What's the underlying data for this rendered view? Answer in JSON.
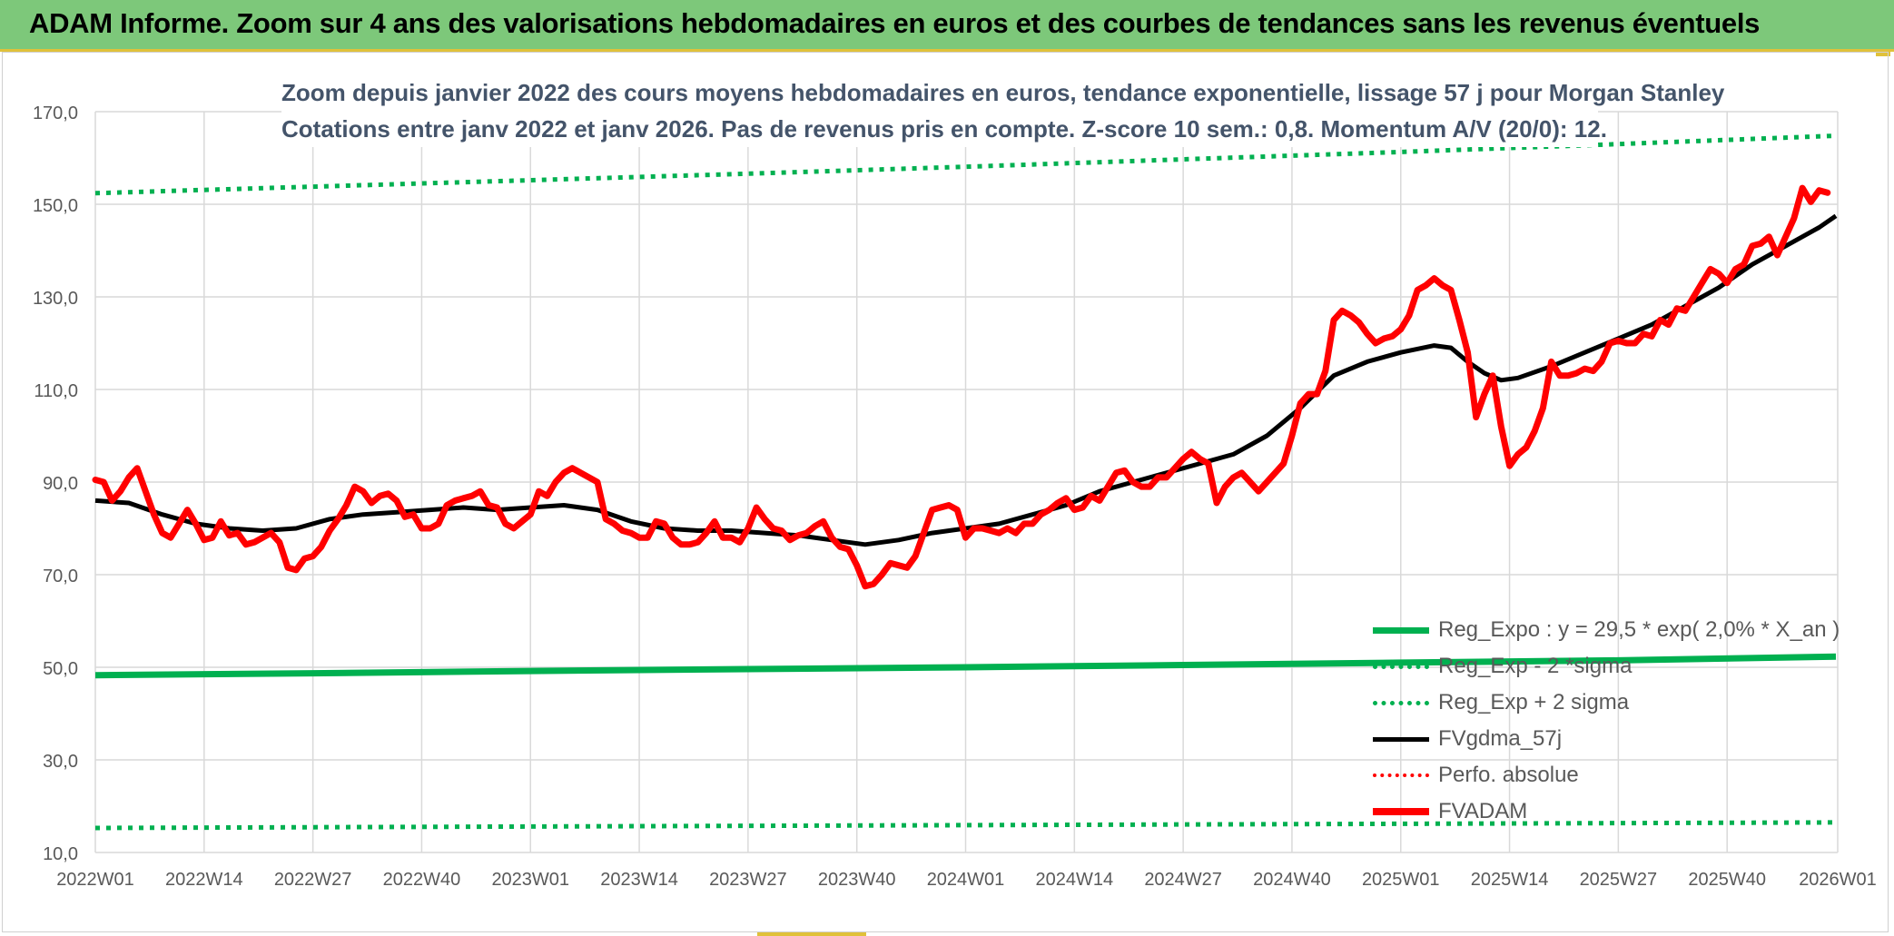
{
  "banner": {
    "title": "ADAM Informe. Zoom sur 4 ans des valorisations hebdomadaires en euros et des courbes de tendances sans les revenus éventuels"
  },
  "colors": {
    "banner_bg": "#7dc87a",
    "accent_gold": "#e0c13a",
    "reg_green": "#00b050",
    "price_red": "#ff0000",
    "ma_black": "#000000",
    "title_text": "#44546a",
    "axis_text": "#595959",
    "gridline": "#d9d9d9"
  },
  "chart_data": {
    "type": "line",
    "title_line1": "Zoom depuis janvier 2022 des cours moyens hebdomadaires en euros, tendance exponentielle, lissage 57 j pour Morgan Stanley",
    "title_line2": "Cotations entre janv 2022 et janv 2026. Pas de revenus pris en compte. Z-score 10 sem.: 0,8. Momentum A/V (20/0): 12.",
    "xlabel": "",
    "ylabel": "",
    "x_range": [
      "2022W01",
      "2026W01"
    ],
    "x_tick_labels": [
      "2022W01",
      "2022W14",
      "2022W27",
      "2022W40",
      "2023W01",
      "2023W14",
      "2023W27",
      "2023W40",
      "2024W01",
      "2024W14",
      "2024W27",
      "2024W40",
      "2025W01",
      "2025W14",
      "2025W27",
      "2025W40",
      "2026W01"
    ],
    "ylim": [
      10,
      170
    ],
    "y_tick_values": [
      10,
      30,
      50,
      70,
      90,
      110,
      130,
      150,
      170
    ],
    "y_tick_labels": [
      "10,0",
      "30,0",
      "50,0",
      "70,0",
      "90,0",
      "110,0",
      "130,0",
      "150,0",
      "170,0"
    ],
    "grid": true,
    "legend_position": "bottom-right",
    "legend": [
      {
        "label": "Reg_Expo : y = 29,5 * exp( 2,0% *  X_an )",
        "style": "solid-green"
      },
      {
        "label": "Reg_Exp - 2 *sigma",
        "style": "dot-green"
      },
      {
        "label": "Reg_Exp + 2 sigma",
        "style": "dot-green"
      },
      {
        "label": "FVgdma_57j",
        "style": "solid-black"
      },
      {
        "label": "Perfo. absolue",
        "style": "dot-red"
      },
      {
        "label": "FVADAM",
        "style": "solid-red"
      }
    ],
    "series": [
      {
        "name": "Reg_Expo : y = 29,5 * exp( 2,0% *  X_an )",
        "style": "solid-green",
        "points": [
          [
            0,
            48.3
          ],
          [
            26,
            48.7
          ],
          [
            52,
            49.2
          ],
          [
            78,
            49.6
          ],
          [
            104,
            50.0
          ],
          [
            130,
            50.5
          ],
          [
            156,
            51.0
          ],
          [
            182,
            51.5
          ],
          [
            208,
            52.3
          ]
        ]
      },
      {
        "name": "Reg_Exp - 2 *sigma",
        "style": "dot-green",
        "points": [
          [
            0,
            15.3
          ],
          [
            52,
            15.6
          ],
          [
            104,
            15.9
          ],
          [
            156,
            16.2
          ],
          [
            208,
            16.5
          ]
        ]
      },
      {
        "name": "Reg_Exp + 2 sigma",
        "style": "dot-green",
        "points": [
          [
            0,
            152.4
          ],
          [
            26,
            153.8
          ],
          [
            52,
            155.2
          ],
          [
            78,
            156.6
          ],
          [
            104,
            158.1
          ],
          [
            130,
            159.7
          ],
          [
            156,
            161.3
          ],
          [
            182,
            163.0
          ],
          [
            208,
            164.8
          ]
        ]
      },
      {
        "name": "FVgdma_57j",
        "style": "solid-black",
        "points": [
          [
            0,
            86
          ],
          [
            4,
            85.5
          ],
          [
            8,
            83
          ],
          [
            12,
            81
          ],
          [
            16,
            80
          ],
          [
            20,
            79.5
          ],
          [
            24,
            80
          ],
          [
            28,
            82
          ],
          [
            32,
            83
          ],
          [
            36,
            83.5
          ],
          [
            40,
            84
          ],
          [
            44,
            84.5
          ],
          [
            48,
            84
          ],
          [
            52,
            84.5
          ],
          [
            56,
            85
          ],
          [
            60,
            84
          ],
          [
            64,
            81.5
          ],
          [
            68,
            80
          ],
          [
            72,
            79.5
          ],
          [
            76,
            79.5
          ],
          [
            80,
            79
          ],
          [
            84,
            78.5
          ],
          [
            88,
            77.5
          ],
          [
            92,
            76.5
          ],
          [
            96,
            77.5
          ],
          [
            100,
            79
          ],
          [
            104,
            80
          ],
          [
            108,
            81
          ],
          [
            112,
            83
          ],
          [
            116,
            85
          ],
          [
            120,
            88
          ],
          [
            124,
            90
          ],
          [
            128,
            92
          ],
          [
            132,
            94
          ],
          [
            136,
            96
          ],
          [
            140,
            100
          ],
          [
            144,
            106
          ],
          [
            148,
            113
          ],
          [
            152,
            116
          ],
          [
            156,
            118
          ],
          [
            160,
            119.5
          ],
          [
            162,
            119
          ],
          [
            164,
            116
          ],
          [
            166,
            113.5
          ],
          [
            168,
            112
          ],
          [
            170,
            112.5
          ],
          [
            174,
            115
          ],
          [
            178,
            118
          ],
          [
            182,
            121
          ],
          [
            186,
            124
          ],
          [
            190,
            128
          ],
          [
            194,
            132
          ],
          [
            198,
            137
          ],
          [
            202,
            141
          ],
          [
            206,
            145
          ],
          [
            208,
            147.5
          ]
        ]
      },
      {
        "name": "FVADAM",
        "style": "solid-red",
        "points": [
          [
            0,
            90.5
          ],
          [
            1,
            90
          ],
          [
            2,
            86
          ],
          [
            3,
            88
          ],
          [
            4,
            91
          ],
          [
            5,
            93
          ],
          [
            6,
            88
          ],
          [
            7,
            83
          ],
          [
            8,
            79
          ],
          [
            9,
            78
          ],
          [
            10,
            81
          ],
          [
            11,
            84
          ],
          [
            12,
            81
          ],
          [
            13,
            77.5
          ],
          [
            14,
            78
          ],
          [
            15,
            81.5
          ],
          [
            16,
            78.5
          ],
          [
            17,
            79
          ],
          [
            18,
            76.5
          ],
          [
            19,
            77
          ],
          [
            20,
            78
          ],
          [
            21,
            79
          ],
          [
            22,
            77
          ],
          [
            23,
            71.5
          ],
          [
            24,
            71
          ],
          [
            25,
            73.5
          ],
          [
            26,
            74
          ],
          [
            27,
            76
          ],
          [
            28,
            79.5
          ],
          [
            29,
            82
          ],
          [
            30,
            85
          ],
          [
            31,
            89
          ],
          [
            32,
            88
          ],
          [
            33,
            85.5
          ],
          [
            34,
            87
          ],
          [
            35,
            87.5
          ],
          [
            36,
            86
          ],
          [
            37,
            82.5
          ],
          [
            38,
            83
          ],
          [
            39,
            80
          ],
          [
            40,
            80
          ],
          [
            41,
            81
          ],
          [
            42,
            85
          ],
          [
            43,
            86
          ],
          [
            44,
            86.5
          ],
          [
            45,
            87
          ],
          [
            46,
            88
          ],
          [
            47,
            85
          ],
          [
            48,
            84.5
          ],
          [
            49,
            81
          ],
          [
            50,
            80
          ],
          [
            51,
            81.5
          ],
          [
            52,
            83
          ],
          [
            53,
            88
          ],
          [
            54,
            87
          ],
          [
            55,
            90
          ],
          [
            56,
            92
          ],
          [
            57,
            93
          ],
          [
            58,
            92
          ],
          [
            59,
            91
          ],
          [
            60,
            90
          ],
          [
            61,
            82
          ],
          [
            62,
            81
          ],
          [
            63,
            79.5
          ],
          [
            64,
            79
          ],
          [
            65,
            78
          ],
          [
            66,
            78
          ],
          [
            67,
            81.5
          ],
          [
            68,
            81
          ],
          [
            69,
            78
          ],
          [
            70,
            76.5
          ],
          [
            71,
            76.5
          ],
          [
            72,
            77
          ],
          [
            73,
            79
          ],
          [
            74,
            81.5
          ],
          [
            75,
            78
          ],
          [
            76,
            78
          ],
          [
            77,
            77
          ],
          [
            78,
            80
          ],
          [
            79,
            84.5
          ],
          [
            80,
            82
          ],
          [
            81,
            80
          ],
          [
            82,
            79.5
          ],
          [
            83,
            77.5
          ],
          [
            84,
            78.5
          ],
          [
            85,
            79
          ],
          [
            86,
            80.5
          ],
          [
            87,
            81.5
          ],
          [
            88,
            78
          ],
          [
            89,
            76
          ],
          [
            90,
            75.5
          ],
          [
            91,
            72
          ],
          [
            92,
            67.5
          ],
          [
            93,
            68
          ],
          [
            94,
            70
          ],
          [
            95,
            72.5
          ],
          [
            96,
            72
          ],
          [
            97,
            71.5
          ],
          [
            98,
            74
          ],
          [
            99,
            79
          ],
          [
            100,
            84
          ],
          [
            101,
            84.5
          ],
          [
            102,
            85
          ],
          [
            103,
            84
          ],
          [
            104,
            78
          ],
          [
            105,
            80
          ],
          [
            106,
            80
          ],
          [
            107,
            79.5
          ],
          [
            108,
            79
          ],
          [
            109,
            80
          ],
          [
            110,
            79
          ],
          [
            111,
            81
          ],
          [
            112,
            81
          ],
          [
            113,
            83
          ],
          [
            114,
            84
          ],
          [
            115,
            85.5
          ],
          [
            116,
            86.5
          ],
          [
            117,
            84
          ],
          [
            118,
            84.5
          ],
          [
            119,
            87
          ],
          [
            120,
            86
          ],
          [
            121,
            89
          ],
          [
            122,
            92
          ],
          [
            123,
            92.5
          ],
          [
            124,
            90
          ],
          [
            125,
            89
          ],
          [
            126,
            89
          ],
          [
            127,
            91
          ],
          [
            128,
            91
          ],
          [
            129,
            93
          ],
          [
            130,
            95
          ],
          [
            131,
            96.5
          ],
          [
            132,
            95
          ],
          [
            133,
            94
          ],
          [
            134,
            85.5
          ],
          [
            135,
            89
          ],
          [
            136,
            91
          ],
          [
            137,
            92
          ],
          [
            138,
            90
          ],
          [
            139,
            88
          ],
          [
            140,
            90
          ],
          [
            141,
            92
          ],
          [
            142,
            94
          ],
          [
            143,
            100
          ],
          [
            144,
            107
          ],
          [
            145,
            109
          ],
          [
            146,
            109
          ],
          [
            147,
            114
          ],
          [
            148,
            125
          ],
          [
            149,
            127
          ],
          [
            150,
            126
          ],
          [
            151,
            124.5
          ],
          [
            152,
            122
          ],
          [
            153,
            120
          ],
          [
            154,
            121
          ],
          [
            155,
            121.5
          ],
          [
            156,
            123
          ],
          [
            157,
            126
          ],
          [
            158,
            131.5
          ],
          [
            159,
            132.5
          ],
          [
            160,
            134
          ],
          [
            161,
            132.5
          ],
          [
            162,
            131.5
          ],
          [
            163,
            125
          ],
          [
            164,
            118
          ],
          [
            165,
            104
          ],
          [
            166,
            109
          ],
          [
            167,
            113
          ],
          [
            168,
            102
          ],
          [
            169,
            93.5
          ],
          [
            170,
            96
          ],
          [
            171,
            97.5
          ],
          [
            172,
            101
          ],
          [
            173,
            106
          ],
          [
            174,
            116
          ],
          [
            175,
            113
          ],
          [
            176,
            113
          ],
          [
            177,
            113.5
          ],
          [
            178,
            114.5
          ],
          [
            179,
            114
          ],
          [
            180,
            116
          ],
          [
            181,
            120
          ],
          [
            182,
            120.5
          ],
          [
            183,
            120
          ],
          [
            184,
            120
          ],
          [
            185,
            122
          ],
          [
            186,
            121.5
          ],
          [
            187,
            125
          ],
          [
            188,
            124
          ],
          [
            189,
            127.5
          ],
          [
            190,
            127
          ],
          [
            191,
            130
          ],
          [
            192,
            133
          ],
          [
            193,
            136
          ],
          [
            194,
            135
          ],
          [
            195,
            133
          ],
          [
            196,
            136
          ],
          [
            197,
            137
          ],
          [
            198,
            141
          ],
          [
            199,
            141.5
          ],
          [
            200,
            143
          ],
          [
            201,
            139
          ],
          [
            202,
            143
          ],
          [
            203,
            147
          ],
          [
            204,
            153.5
          ],
          [
            205,
            150.5
          ],
          [
            206,
            153
          ],
          [
            207,
            152.5
          ]
        ]
      }
    ]
  }
}
